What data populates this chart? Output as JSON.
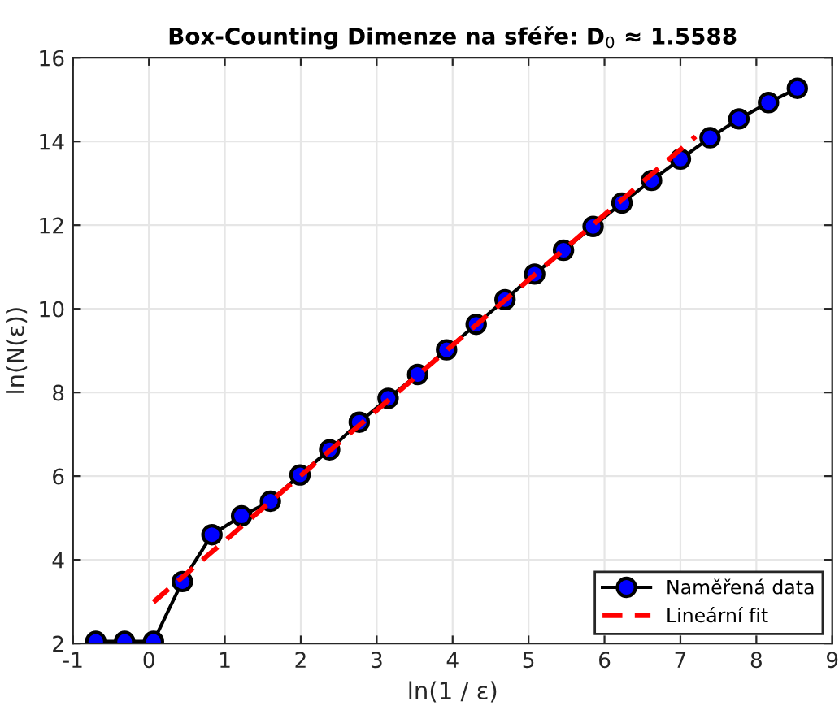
{
  "chart_data": {
    "type": "line",
    "title": "Box-Counting Dimenze na sféře: D$_{0}$ ≈ 1.5588",
    "xlabel": "ln(1 / ε)",
    "ylabel": "ln(N(ε))",
    "xlim": [
      -1,
      9
    ],
    "ylim": [
      2,
      16
    ],
    "xticks": [
      -1,
      0,
      1,
      2,
      3,
      4,
      5,
      6,
      7,
      8,
      9
    ],
    "yticks": [
      2,
      4,
      6,
      8,
      10,
      12,
      14,
      16
    ],
    "grid": true,
    "legend": "bottom right",
    "series": [
      {
        "name": "Naměřená data",
        "color": "#000000",
        "marker": "circle",
        "line_style": "solid",
        "x": [
          -0.7,
          -0.32,
          0.06,
          0.44,
          0.83,
          1.22,
          1.6,
          1.99,
          2.38,
          2.77,
          3.15,
          3.54,
          3.92,
          4.31,
          4.69,
          5.08,
          5.46,
          5.85,
          6.23,
          6.62,
          7.0,
          7.39,
          7.77,
          8.16,
          8.54
        ],
        "values": [
          2.05,
          2.05,
          2.05,
          3.48,
          4.6,
          5.05,
          5.4,
          6.03,
          6.63,
          7.29,
          7.86,
          8.43,
          9.02,
          9.63,
          10.22,
          10.83,
          11.4,
          11.97,
          12.53,
          13.07,
          13.58,
          14.09,
          14.54,
          14.93,
          15.27
        ]
      },
      {
        "name": "Lineární fit",
        "color": "#ff0000",
        "marker": "none",
        "line_style": "dashed",
        "x": [
          0.06,
          7.2
        ],
        "values": [
          2.99,
          14.12
        ]
      }
    ]
  }
}
